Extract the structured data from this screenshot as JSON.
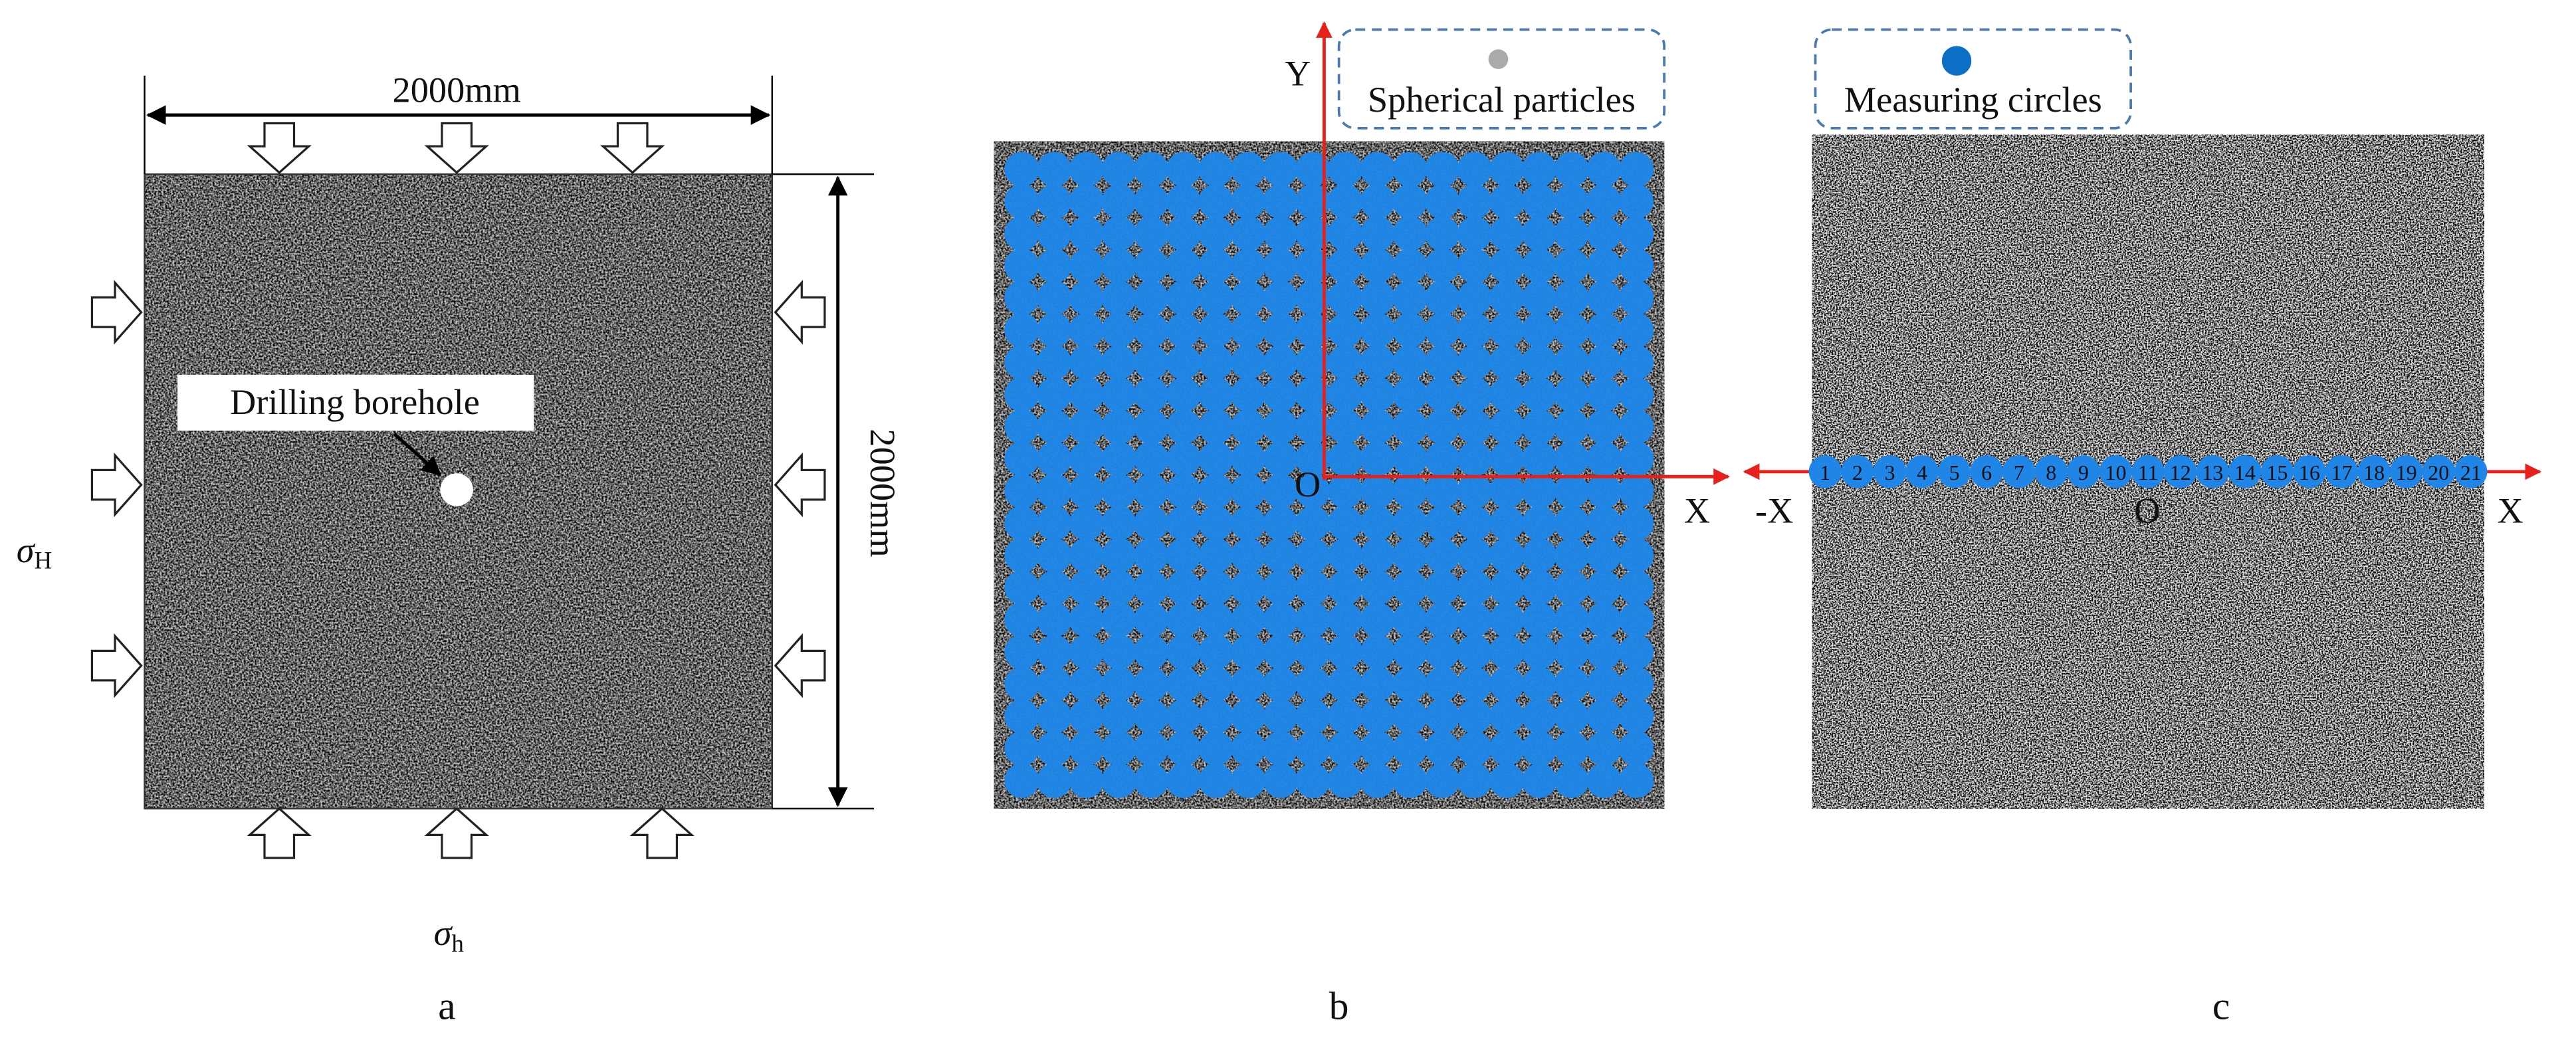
{
  "panel_a": {
    "width_label": "2000mm",
    "height_label": "2000mm",
    "borehole_label": "Drilling borehole",
    "sigma_H": {
      "symbol": "σ",
      "subscript": "H"
    },
    "sigma_h": {
      "symbol": "σ",
      "subscript": "h"
    },
    "caption": "a"
  },
  "panel_b": {
    "legend": "Spherical particles",
    "axis_y": "Y",
    "origin": "O",
    "axis_x": "X",
    "caption": "b"
  },
  "panel_c": {
    "legend": "Measuring circles",
    "axis_neg_x": "-X",
    "origin": "O",
    "axis_x": "X",
    "circle_numbers": [
      "1",
      "2",
      "3",
      "4",
      "5",
      "6",
      "7",
      "8",
      "9",
      "10",
      "11",
      "12",
      "13",
      "14",
      "15",
      "16",
      "17",
      "18",
      "19",
      "20",
      "21"
    ],
    "caption": "c"
  }
}
